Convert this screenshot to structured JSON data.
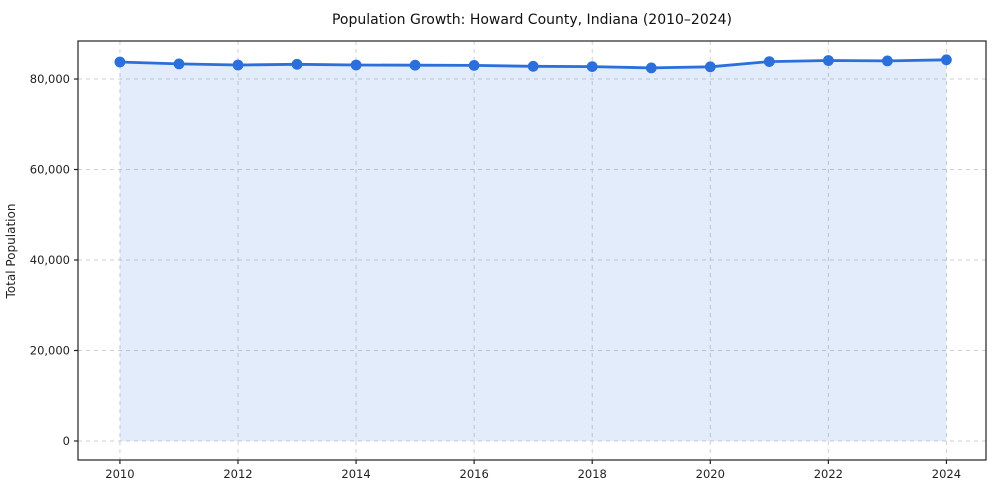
{
  "chart_data": {
    "type": "area",
    "title": "Population Growth: Howard County, Indiana (2010–2024)",
    "xlabel": "",
    "ylabel": "Total Population",
    "x": [
      2010,
      2011,
      2012,
      2013,
      2014,
      2015,
      2016,
      2017,
      2018,
      2019,
      2020,
      2021,
      2022,
      2023,
      2024
    ],
    "values": [
      83750,
      83350,
      83100,
      83250,
      83100,
      83050,
      83000,
      82800,
      82750,
      82450,
      82700,
      83850,
      84100,
      84000,
      84250
    ],
    "series_name": "Total Population",
    "xticks": [
      2010,
      2012,
      2014,
      2016,
      2018,
      2020,
      2022,
      2024
    ],
    "xtick_labels": [
      "2010",
      "2012",
      "2014",
      "2016",
      "2018",
      "2020",
      "2022",
      "2024"
    ],
    "yticks": [
      0,
      20000,
      40000,
      60000,
      80000
    ],
    "ytick_labels": [
      "0",
      "20,000",
      "40,000",
      "60,000",
      "80,000"
    ],
    "xlim": [
      2009.29,
      2024.67
    ],
    "ylim": [
      -4200,
      88400
    ],
    "grid": "dashed both",
    "legend": "none",
    "colors": {
      "line": "#2a6fdb",
      "marker": "#2a6fdb",
      "fill": "#2a6fdb",
      "fill_opacity": 0.13,
      "grid": "#cfcfcf",
      "spine": "#222222",
      "background": "#ffffff",
      "text": "#222222"
    }
  }
}
